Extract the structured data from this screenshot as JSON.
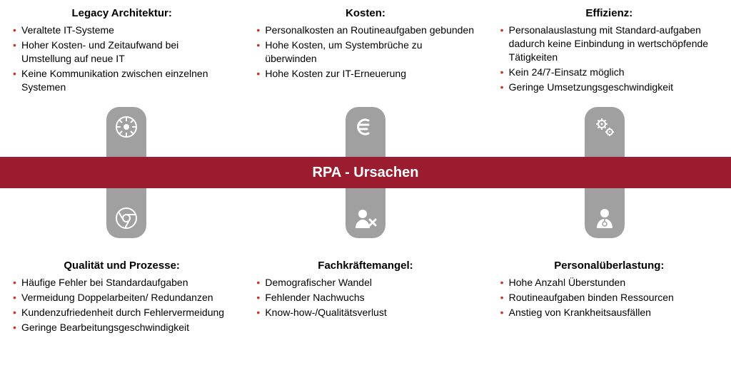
{
  "banner": {
    "text": "RPA - Ursachen",
    "bg": "#9b1c2e",
    "color": "#ffffff"
  },
  "bullet_color": "#c0392b",
  "icon_bg": "#a0a0a0",
  "top": [
    {
      "heading": "Legacy Architektur:",
      "icon": "empire",
      "items": [
        "Veraltete IT-Systeme",
        "Hoher Kosten- und Zeitaufwand bei Umstellung auf neue IT",
        "Keine Kommunikation zwischen einzelnen Systemen"
      ]
    },
    {
      "heading": "Kosten:",
      "icon": "euro",
      "items": [
        "Personalkosten an Routineaufgaben gebunden",
        "Hohe Kosten, um Systembrüche zu überwinden",
        "Hohe Kosten zur IT-Erneuerung"
      ]
    },
    {
      "heading": "Effizienz:",
      "icon": "gears",
      "items": [
        "Personalauslastung mit Standard-aufgaben dadurch keine Einbindung in wertschöpfende Tätigkeiten",
        "Kein 24/7-Einsatz möglich",
        "Geringe Umsetzungsgeschwindigkeit"
      ]
    }
  ],
  "bottom": [
    {
      "heading": "Qualität und Prozesse:",
      "icon": "chrome",
      "items": [
        "Häufige Fehler bei Standardaufgaben",
        "Vermeidung Doppelarbeiten/ Redundanzen",
        "Kundenzufriedenheit durch Fehlervermeidung",
        "Geringe Bearbeitungsgeschwindigkeit"
      ]
    },
    {
      "heading": "Fachkräftemangel:",
      "icon": "user-x",
      "items": [
        "Demografischer Wandel",
        "Fehlender Nachwuchs",
        "Know-how-/Qualitätsverlust"
      ]
    },
    {
      "heading": "Personalüberlastung:",
      "icon": "doctor",
      "items": [
        "Hohe Anzahl Überstunden",
        "Routineaufgaben binden Ressourcen",
        "Anstieg von Krankheitsausfällen"
      ]
    }
  ]
}
